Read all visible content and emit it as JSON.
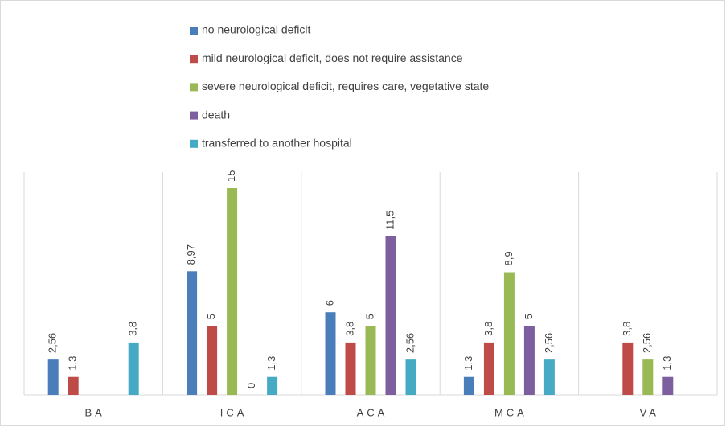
{
  "chart_data": {
    "type": "bar",
    "categories": [
      "BA",
      "ICA",
      "ACA",
      "MCA",
      "VA"
    ],
    "series": [
      {
        "name": "no neurological deficit",
        "color": "#4a7ebb",
        "values": [
          2.56,
          8.97,
          6,
          1.3,
          null
        ],
        "value_labels": [
          "2,56",
          "8,97",
          "6",
          "1,3",
          null
        ]
      },
      {
        "name": "mild neurological deficit, does not require assistance",
        "color": "#be4b48",
        "values": [
          1.3,
          5,
          3.8,
          3.8,
          3.8
        ],
        "value_labels": [
          "1,3",
          "5",
          "3,8",
          "3,8",
          "3,8"
        ]
      },
      {
        "name": "severe neurological deficit, requires care, vegetative state",
        "color": "#98b954",
        "values": [
          null,
          15,
          5,
          8.9,
          2.56
        ],
        "value_labels": [
          null,
          "15",
          "5",
          "8,9",
          "2,56"
        ]
      },
      {
        "name": "death",
        "color": "#7d5fa0",
        "values": [
          null,
          0,
          11.5,
          5,
          1.3
        ],
        "value_labels": [
          null,
          "0",
          "11,5",
          "5",
          "1,3"
        ]
      },
      {
        "name": "transferred to another hospital",
        "color": "#46aac5",
        "values": [
          3.8,
          1.3,
          2.56,
          2.56,
          null
        ],
        "value_labels": [
          "3,8",
          "1,3",
          "2,56",
          "2,56",
          null
        ]
      }
    ],
    "legend": "top"
  }
}
